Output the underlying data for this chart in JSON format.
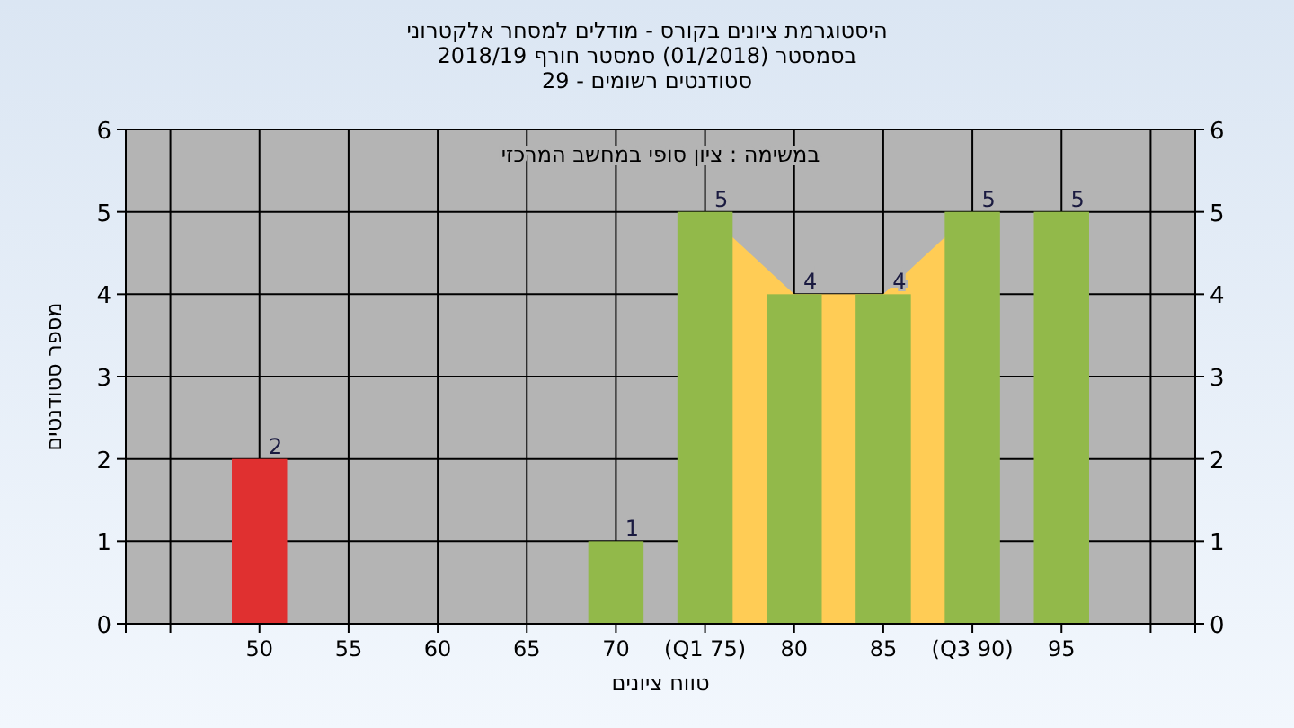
{
  "chart_data": {
    "type": "bar",
    "title": "היסטוגרמת ציונים בקורס - מודלים למסחר אלקטרוני",
    "subtitle": "בסמסטר  (01/2018)  סמסטר חורף 2018/19",
    "annotations": [
      "סטודנטים רשומים - 29",
      "במשימה : ציון סופי במחשב המרכזי"
    ],
    "xlabel": "טווח ציונים",
    "ylabel": "מספר סטודנטים",
    "categories": [
      null,
      "50",
      "55",
      "60",
      "65",
      "70",
      "(Q1 75)",
      "80",
      "85",
      "(Q3 90)",
      "95",
      null
    ],
    "series": [
      {
        "type": "area",
        "color": "#ffcc55",
        "values": [
          null,
          null,
          null,
          null,
          null,
          null,
          5,
          4,
          4,
          5,
          null,
          null
        ]
      },
      {
        "type": "bar",
        "values": [
          0,
          2,
          0,
          0,
          0,
          1,
          5,
          4,
          4,
          5,
          5,
          0
        ],
        "value_labels": [
          null,
          "2",
          null,
          null,
          null,
          "1",
          "5",
          "4",
          "4",
          "5",
          "5",
          null
        ],
        "colors": [
          "#92b94a",
          "#e03030",
          "#92b94a",
          "#92b94a",
          "#92b94a",
          "#92b94a",
          "#92b94a",
          "#92b94a",
          "#92b94a",
          "#92b94a",
          "#92b94a",
          "#92b94a"
        ]
      }
    ],
    "ylim": [
      0,
      6
    ],
    "yticks": [
      0,
      1,
      2,
      3,
      4,
      5,
      6
    ],
    "y2lim": [
      0,
      6
    ],
    "y2ticks": [
      0,
      1,
      2,
      3,
      4,
      5,
      6
    ],
    "grid": true
  }
}
